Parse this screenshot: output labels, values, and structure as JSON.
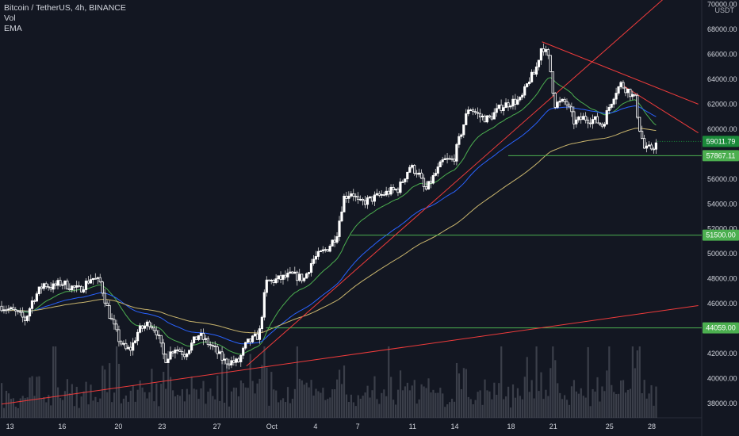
{
  "header": {
    "title": "Bitcoin / TetherUS, 4h, BINANCE",
    "indicator_vol": "Vol",
    "indicator_ema": "EMA",
    "currency": "USDT"
  },
  "colors": {
    "background": "#131722",
    "up_candle": "#ffffff",
    "down_candle": "#ffffff",
    "volume": "#5d606b",
    "ema_20": "#4caf50",
    "ema_50": "#2962ff",
    "ema_100": "#c9b56d",
    "trendline": "#ef3b3b",
    "level": "#4caf50",
    "current_price_label": "#1b8a3a"
  },
  "chart_data": {
    "type": "candlestick",
    "symbol": "Bitcoin / TetherUS",
    "interval": "4h",
    "exchange": "BINANCE",
    "ylim": [
      37000,
      70000
    ],
    "y_ticks": [
      38000,
      40000,
      42000,
      44000,
      46000,
      48000,
      50000,
      52000,
      54000,
      56000,
      58000,
      60000,
      62000,
      64000,
      66000,
      68000,
      70000
    ],
    "y_tick_labels": [
      "38000.00",
      "40000.00",
      "42000.00",
      "44000.00",
      "46000.00",
      "48000.00",
      "50000.00",
      "52000.00",
      "54000.00",
      "56000.00",
      "58000.00",
      "60000.00",
      "62000.00",
      "64000.00",
      "66000.00",
      "68000.00",
      "70000.00"
    ],
    "x_ticks": [
      "13",
      "16",
      "20",
      "23",
      "27",
      "Oct",
      "4",
      "7",
      "11",
      "14",
      "18",
      "21",
      "25",
      "28"
    ],
    "price_path": [
      {
        "d": 0,
        "p": 45800
      },
      {
        "d": 1,
        "p": 45300
      },
      {
        "d": 1.7,
        "p": 44700
      },
      {
        "d": 2.2,
        "p": 46300
      },
      {
        "d": 3,
        "p": 47600
      },
      {
        "d": 3.6,
        "p": 47300
      },
      {
        "d": 4.2,
        "p": 47700
      },
      {
        "d": 5.5,
        "p": 47100
      },
      {
        "d": 6.4,
        "p": 48100
      },
      {
        "d": 7,
        "p": 47700
      },
      {
        "d": 7.6,
        "p": 45300
      },
      {
        "d": 8.3,
        "p": 43200
      },
      {
        "d": 8.8,
        "p": 42300
      },
      {
        "d": 9.2,
        "p": 42400
      },
      {
        "d": 9.7,
        "p": 43800
      },
      {
        "d": 10.5,
        "p": 44500
      },
      {
        "d": 11,
        "p": 43800
      },
      {
        "d": 11.6,
        "p": 41500
      },
      {
        "d": 12.3,
        "p": 42500
      },
      {
        "d": 13,
        "p": 42000
      },
      {
        "d": 14,
        "p": 43500
      },
      {
        "d": 15,
        "p": 42500
      },
      {
        "d": 15.8,
        "p": 41400
      },
      {
        "d": 16.8,
        "p": 41300
      },
      {
        "d": 17.4,
        "p": 42800
      },
      {
        "d": 18.3,
        "p": 43500
      },
      {
        "d": 18.8,
        "p": 47700
      },
      {
        "d": 19.8,
        "p": 48000
      },
      {
        "d": 20.6,
        "p": 48300
      },
      {
        "d": 21.5,
        "p": 48000
      },
      {
        "d": 22.1,
        "p": 49500
      },
      {
        "d": 23.2,
        "p": 50500
      },
      {
        "d": 23.8,
        "p": 51500
      },
      {
        "d": 24.3,
        "p": 54500
      },
      {
        "d": 24.9,
        "p": 55000
      },
      {
        "d": 25.4,
        "p": 54000
      },
      {
        "d": 26.5,
        "p": 54500
      },
      {
        "d": 27.6,
        "p": 55000
      },
      {
        "d": 28.2,
        "p": 55200
      },
      {
        "d": 29,
        "p": 57000
      },
      {
        "d": 29.6,
        "p": 56500
      },
      {
        "d": 30.1,
        "p": 55000
      },
      {
        "d": 30.6,
        "p": 56000
      },
      {
        "d": 31.4,
        "p": 57500
      },
      {
        "d": 32.1,
        "p": 57500
      },
      {
        "d": 32.6,
        "p": 59500
      },
      {
        "d": 33.2,
        "p": 61800
      },
      {
        "d": 34,
        "p": 61000
      },
      {
        "d": 34.6,
        "p": 60800
      },
      {
        "d": 35.5,
        "p": 61800
      },
      {
        "d": 36.3,
        "p": 62200
      },
      {
        "d": 36.9,
        "p": 62300
      },
      {
        "d": 37.5,
        "p": 64000
      },
      {
        "d": 37.9,
        "p": 64500
      },
      {
        "d": 38.4,
        "p": 66800
      },
      {
        "d": 38.9,
        "p": 65500
      },
      {
        "d": 39.3,
        "p": 62000
      },
      {
        "d": 40.1,
        "p": 62200
      },
      {
        "d": 40.7,
        "p": 60500
      },
      {
        "d": 41.3,
        "p": 60900
      },
      {
        "d": 42.2,
        "p": 60700
      },
      {
        "d": 42.7,
        "p": 60300
      },
      {
        "d": 43.1,
        "p": 61600
      },
      {
        "d": 43.6,
        "p": 63000
      },
      {
        "d": 44,
        "p": 63600
      },
      {
        "d": 44.6,
        "p": 63000
      },
      {
        "d": 45,
        "p": 62400
      },
      {
        "d": 45.3,
        "p": 60200
      },
      {
        "d": 45.7,
        "p": 58300
      },
      {
        "d": 46.2,
        "p": 58500
      },
      {
        "d": 46.6,
        "p": 58900
      }
    ],
    "series": [
      {
        "name": "EMA",
        "type": "ema",
        "period": 20,
        "color": "#4caf50"
      },
      {
        "name": "EMA",
        "type": "ema",
        "period": 50,
        "color": "#2962ff"
      },
      {
        "name": "EMA",
        "type": "ema",
        "period": 100,
        "color": "#c9b56d"
      }
    ],
    "horizontal_levels": [
      {
        "price": 57867.11,
        "label": "57867.11"
      },
      {
        "price": 51500.0,
        "label": "51500.00"
      },
      {
        "price": 44059.0,
        "label": "44059.00"
      }
    ],
    "current_price": {
      "price": 59011.79,
      "label": "59011.79"
    },
    "trendlines": [
      {
        "from": {
          "d": 0,
          "p": 37950
        },
        "to": {
          "d": 49.5,
          "p": 45850
        }
      },
      {
        "from": {
          "d": 17.4,
          "p": 41000
        },
        "to": {
          "d": 47.8,
          "p": 71200
        }
      },
      {
        "from": {
          "d": 38.4,
          "p": 67000
        },
        "to": {
          "d": 49.5,
          "p": 62000
        }
      },
      {
        "from": {
          "d": 44,
          "p": 63600
        },
        "to": {
          "d": 49.5,
          "p": 59700
        }
      }
    ]
  }
}
